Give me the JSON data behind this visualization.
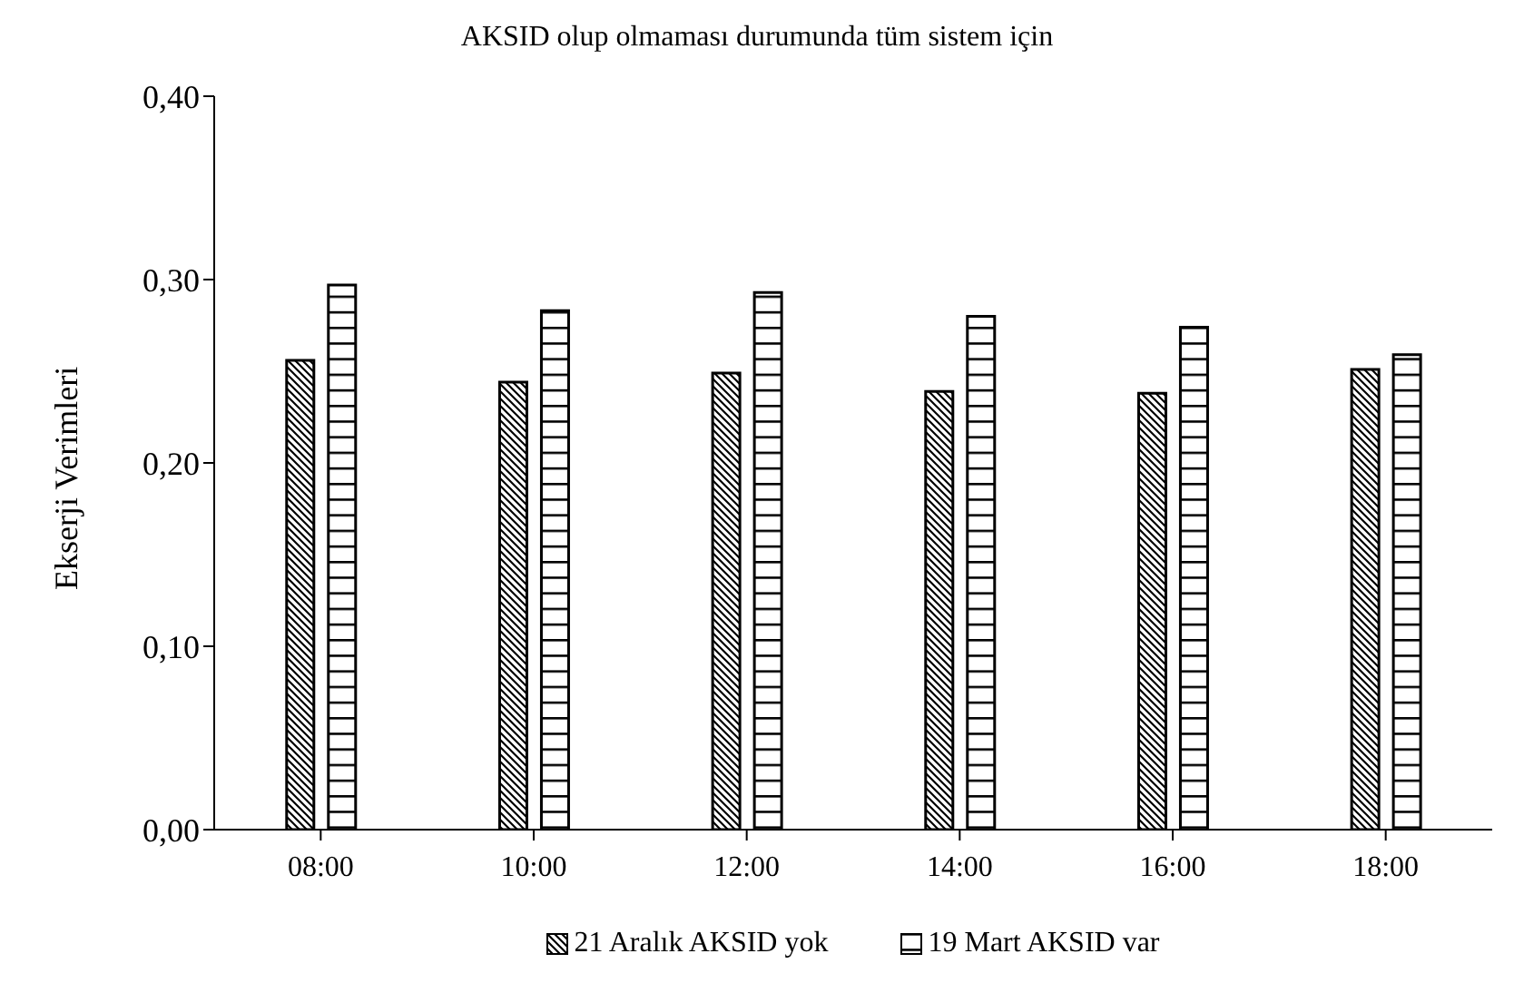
{
  "chart_data": {
    "type": "bar",
    "title": "AKSID olup olmaması durumunda tüm sistem için",
    "ylabel": "Ekserji Verimleri",
    "categories": [
      "08:00",
      "10:00",
      "12:00",
      "14:00",
      "16:00",
      "18:00"
    ],
    "series": [
      {
        "name": "21 Aralık AKSID yok",
        "color": "#000000",
        "values": [
          0.256,
          0.244,
          0.249,
          0.239,
          0.238,
          0.251
        ]
      },
      {
        "name": "19 Mart AKSID var",
        "color": "#000000",
        "values": [
          0.297,
          0.283,
          0.293,
          0.28,
          0.274,
          0.259
        ]
      }
    ],
    "ylim": [
      0,
      0.4
    ],
    "yticks": [
      {
        "value": 0,
        "label": "0,00"
      },
      {
        "value": 0.1,
        "label": "0,10"
      },
      {
        "value": 0.2,
        "label": "0,20"
      },
      {
        "value": 0.3,
        "label": "0,30"
      },
      {
        "value": 0.4,
        "label": "0,40"
      }
    ],
    "grid": false,
    "legend": "bottom"
  }
}
